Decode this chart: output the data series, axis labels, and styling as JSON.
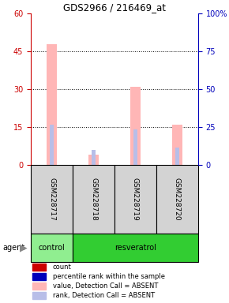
{
  "title": "GDS2966 / 216469_at",
  "samples": [
    "GSM228717",
    "GSM228718",
    "GSM228719",
    "GSM228720"
  ],
  "pink_bars": [
    48,
    4,
    31,
    16
  ],
  "blue_bars": [
    16,
    6,
    14,
    7
  ],
  "ylim_left": [
    0,
    60
  ],
  "ylim_right": [
    0,
    100
  ],
  "yticks_left": [
    0,
    15,
    30,
    45,
    60
  ],
  "yticks_right": [
    0,
    25,
    50,
    75,
    100
  ],
  "left_color": "#cc0000",
  "right_color": "#0000bb",
  "bg_sample": "#d3d3d3",
  "control_color": "#90ee90",
  "resveratrol_color": "#32cd32",
  "group_spans": [
    {
      "label": "control",
      "start": 0,
      "end": 1
    },
    {
      "label": "resveratrol",
      "start": 1,
      "end": 4
    }
  ],
  "legend_colors": [
    "#cc0000",
    "#0000bb",
    "#ffb6b6",
    "#b8bee8"
  ],
  "legend_labels": [
    "count",
    "percentile rank within the sample",
    "value, Detection Call = ABSENT",
    "rank, Detection Call = ABSENT"
  ],
  "pink_color": "#ffb6b6",
  "blue_light_color": "#b8bee8"
}
